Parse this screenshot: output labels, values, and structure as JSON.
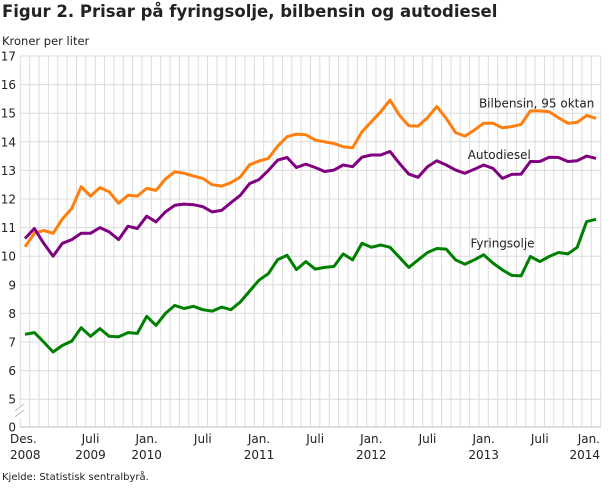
{
  "chart_data": {
    "type": "line",
    "title": "Figur 2. Prisar på fyringsolje, bilbensin og autodiesel",
    "ylabel": "Kroner per liter",
    "xlabel": "",
    "source": "Kjelde: Statistisk sentralbyrå.",
    "ylim": [
      0,
      17
    ],
    "yticks": [
      "0",
      "5",
      "6",
      "7",
      "8",
      "9",
      "10",
      "11",
      "12",
      "13",
      "14",
      "15",
      "16",
      "17"
    ],
    "x_period": "monthly, Des. 2008 – Jan. 2014",
    "xticks": [
      {
        "month_index": 0,
        "line1": "Des.",
        "line2": "2008"
      },
      {
        "month_index": 7,
        "line1": "Juli",
        "line2": "2009"
      },
      {
        "month_index": 13,
        "line1": "Jan.",
        "line2": "2010"
      },
      {
        "month_index": 19,
        "line1": "Juli",
        "line2": ""
      },
      {
        "month_index": 25,
        "line1": "Jan.",
        "line2": "2011"
      },
      {
        "month_index": 31,
        "line1": "Juli",
        "line2": ""
      },
      {
        "month_index": 37,
        "line1": "Jan.",
        "line2": "2012"
      },
      {
        "month_index": 43,
        "line1": "Juli",
        "line2": ""
      },
      {
        "month_index": 49,
        "line1": "Jan.",
        "line2": "2013"
      },
      {
        "month_index": 55,
        "line1": "Juli",
        "line2": ""
      },
      {
        "month_index": 61,
        "line1": "Jan.",
        "line2": "2014"
      }
    ],
    "grid": true,
    "series": [
      {
        "name": "Bilbensin, 95 oktan",
        "color": "#ff7f0e",
        "label_month": 48.5,
        "label_value": 15.2,
        "values": [
          10.33,
          10.8,
          10.9,
          10.8,
          11.3,
          11.67,
          12.43,
          12.1,
          12.4,
          12.25,
          11.85,
          12.13,
          12.1,
          12.37,
          12.3,
          12.7,
          12.95,
          12.9,
          12.8,
          12.72,
          12.5,
          12.45,
          12.57,
          12.77,
          13.2,
          13.33,
          13.42,
          13.85,
          14.18,
          14.27,
          14.25,
          14.06,
          14.0,
          13.94,
          13.83,
          13.79,
          14.35,
          14.7,
          15.05,
          15.46,
          14.93,
          14.56,
          14.55,
          14.84,
          15.23,
          14.82,
          14.32,
          14.2,
          14.41,
          14.65,
          14.65,
          14.49,
          14.53,
          14.61,
          15.08,
          15.08,
          15.05,
          14.84,
          14.65,
          14.68,
          14.92,
          14.82
        ]
      },
      {
        "name": "Autodiesel",
        "color": "#800080",
        "label_month": 47.3,
        "label_value": 13.4,
        "values": [
          10.62,
          10.97,
          10.45,
          10.0,
          10.45,
          10.58,
          10.8,
          10.8,
          11.0,
          10.85,
          10.58,
          11.05,
          10.97,
          11.4,
          11.2,
          11.55,
          11.78,
          11.82,
          11.8,
          11.73,
          11.55,
          11.6,
          11.87,
          12.13,
          12.54,
          12.68,
          13.0,
          13.36,
          13.45,
          13.1,
          13.22,
          13.1,
          12.96,
          13.01,
          13.19,
          13.13,
          13.46,
          13.54,
          13.54,
          13.66,
          13.25,
          12.87,
          12.76,
          13.13,
          13.34,
          13.19,
          13.01,
          12.9,
          13.04,
          13.19,
          13.07,
          12.72,
          12.86,
          12.87,
          13.31,
          13.31,
          13.46,
          13.45,
          13.31,
          13.34,
          13.5,
          13.42
        ]
      },
      {
        "name": "Fyringsolje",
        "color": "#008000",
        "label_month": 47.6,
        "label_value": 10.3,
        "values": [
          7.27,
          7.33,
          7.0,
          6.65,
          6.88,
          7.03,
          7.5,
          7.2,
          7.47,
          7.2,
          7.18,
          7.33,
          7.3,
          7.9,
          7.58,
          8.0,
          8.28,
          8.17,
          8.25,
          8.13,
          8.08,
          8.22,
          8.13,
          8.4,
          8.78,
          9.16,
          9.39,
          9.88,
          10.03,
          9.53,
          9.81,
          9.55,
          9.61,
          9.64,
          10.08,
          9.87,
          10.45,
          10.31,
          10.39,
          10.31,
          9.96,
          9.61,
          9.87,
          10.13,
          10.27,
          10.25,
          9.87,
          9.72,
          9.87,
          10.05,
          9.76,
          9.52,
          9.33,
          9.31,
          9.99,
          9.81,
          9.99,
          10.13,
          10.08,
          10.31,
          11.21,
          11.29
        ]
      }
    ]
  }
}
